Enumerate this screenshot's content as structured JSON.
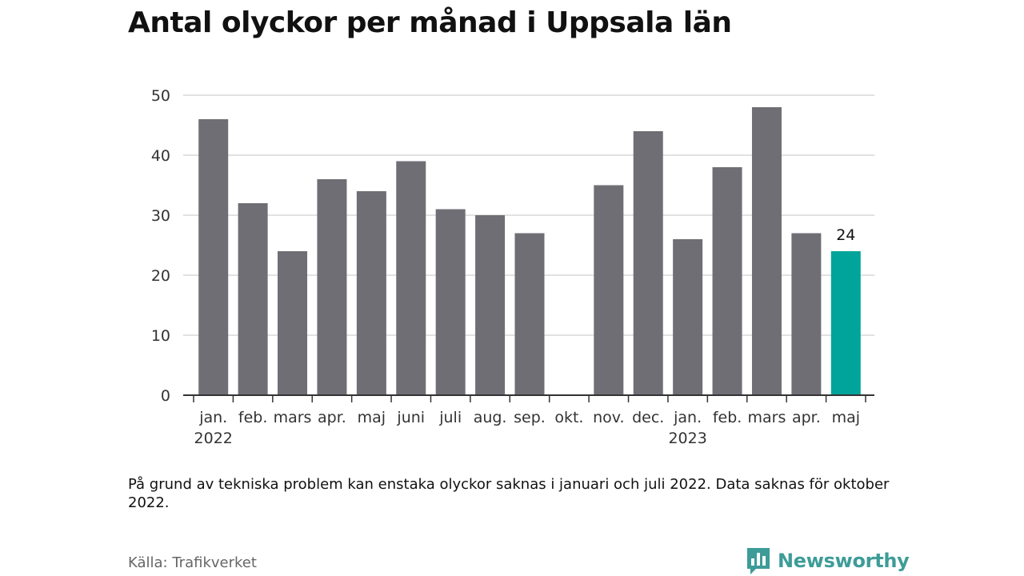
{
  "title": "Antal olyckor per månad i Uppsala län",
  "note": "På grund av tekniska problem kan enstaka olyckor saknas i januari och juli 2022. Data saknas för oktober 2022.",
  "source": "Källa: Trafikverket",
  "brand": {
    "name": "Newsworthy",
    "icon": "bar-chart-logo-icon"
  },
  "colors": {
    "bar": "#6f6e75",
    "highlight": "#00a49a",
    "grid": "#d9d9d9",
    "axis": "#333333",
    "tick_text": "#333333",
    "brand": "#3d9c98"
  },
  "chart_data": {
    "type": "bar",
    "categories": [
      "jan.",
      "feb.",
      "mars",
      "apr.",
      "maj",
      "juni",
      "juli",
      "aug.",
      "sep.",
      "okt.",
      "nov.",
      "dec.",
      "jan.",
      "feb.",
      "mars",
      "apr.",
      "maj"
    ],
    "year_labels": [
      {
        "category_index": 0,
        "label": "2022"
      },
      {
        "category_index": 12,
        "label": "2023"
      }
    ],
    "values": [
      46,
      32,
      24,
      36,
      34,
      39,
      31,
      30,
      27,
      null,
      35,
      44,
      26,
      38,
      48,
      27,
      24
    ],
    "highlight_index": 16,
    "data_labels": [
      {
        "category_index": 16,
        "label": "24"
      }
    ],
    "yticks": [
      0,
      10,
      20,
      30,
      40,
      50
    ],
    "ylim": [
      0,
      50
    ],
    "grid": true,
    "legend": "none",
    "xlabel": "",
    "ylabel": ""
  }
}
